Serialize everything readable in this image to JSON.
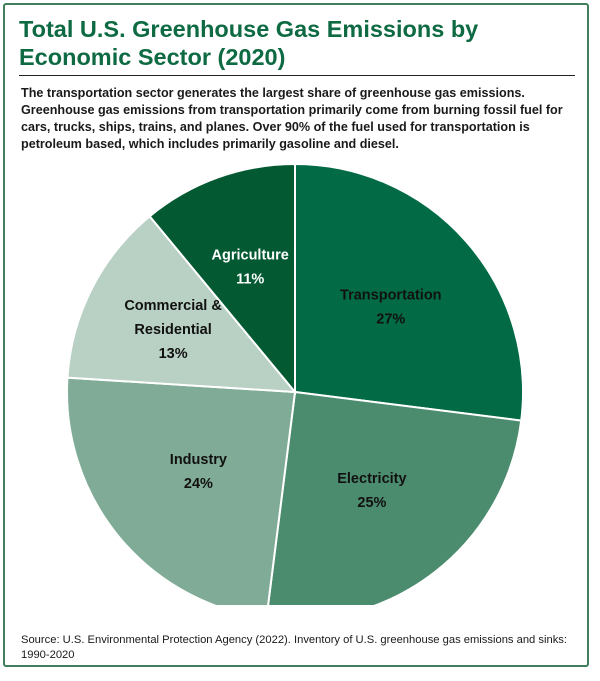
{
  "title": "Total U.S. Greenhouse Gas Emissions by Economic Sector (2020)",
  "description": "The transportation sector generates the largest share of greenhouse gas emissions. Greenhouse gas emissions from transportation primarily come from burning fossil fuel for cars, trucks, ships, trains, and planes. Over 90% of the fuel used for transportation is petroleum based, which includes primarily gasoline and diesel.",
  "source": "Source: U.S. Environmental Protection Agency (2022). Inventory of U.S. greenhouse gas emissions and sinks: 1990-2020",
  "colors": {
    "title": "#0e6a42",
    "border": "#3f7f5e"
  },
  "chart_data": {
    "type": "pie",
    "title": "Total U.S. Greenhouse Gas Emissions by Economic Sector (2020)",
    "unit": "%",
    "slices": [
      {
        "label": [
          "Transportation"
        ],
        "value": 27,
        "display": "27%",
        "color": "#026a45"
      },
      {
        "label": [
          "Electricity"
        ],
        "value": 25,
        "display": "25%",
        "color": "#4c8c6e"
      },
      {
        "label": [
          "Industry"
        ],
        "value": 24,
        "display": "24%",
        "color": "#80ac97"
      },
      {
        "label": [
          "Commercial &",
          "Residential"
        ],
        "value": 13,
        "display": "13%",
        "color": "#b9d0c4"
      },
      {
        "label": [
          "Agriculture"
        ],
        "value": 11,
        "display": "11%",
        "color": "#035a32",
        "label_color": "#ffffff"
      }
    ]
  }
}
